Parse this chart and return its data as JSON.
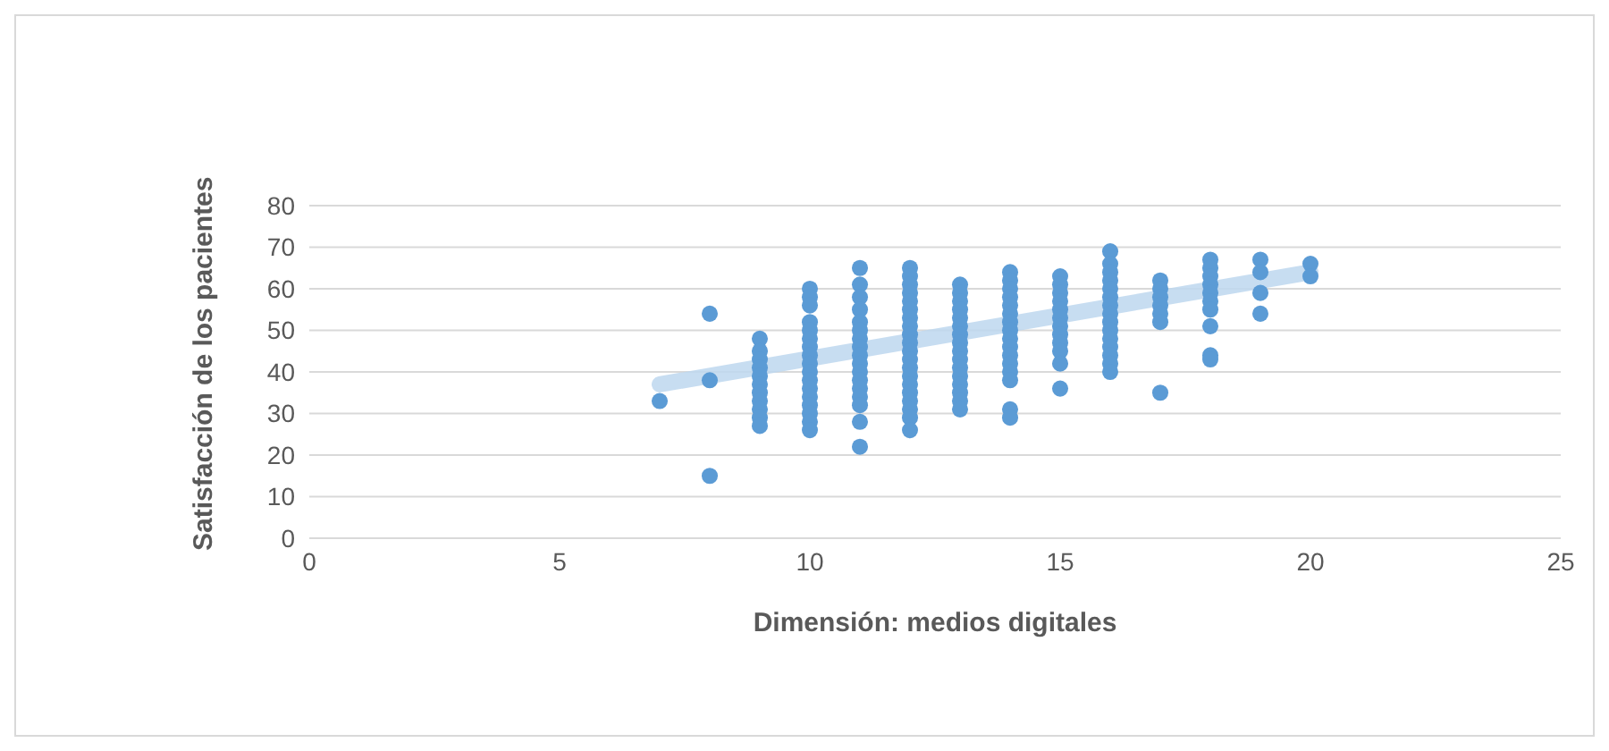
{
  "chart_data": {
    "type": "scatter",
    "xlabel": "Dimensión: medios digitales",
    "ylabel": "Satisfacción de los pacientes",
    "xlim": [
      0,
      25
    ],
    "xticks": [
      0,
      5,
      10,
      15,
      20,
      25
    ],
    "ylim": [
      0,
      80
    ],
    "yticks": [
      0,
      10,
      20,
      30,
      40,
      50,
      60,
      70,
      80
    ],
    "grid": "y",
    "legend": false,
    "marker": "circle",
    "series": [
      {
        "color": "#5b9bd5",
        "x": [
          7,
          8,
          8,
          8,
          9,
          9,
          9,
          9,
          9,
          9,
          9,
          9,
          9,
          9,
          9,
          10,
          10,
          10,
          10,
          10,
          10,
          10,
          10,
          10,
          10,
          10,
          10,
          10,
          10,
          10,
          10,
          10,
          11,
          11,
          11,
          11,
          11,
          11,
          11,
          11,
          11,
          11,
          11,
          11,
          11,
          11,
          11,
          11,
          11,
          12,
          12,
          12,
          12,
          12,
          12,
          12,
          12,
          12,
          12,
          12,
          12,
          12,
          12,
          12,
          12,
          12,
          12,
          12,
          12,
          13,
          13,
          13,
          13,
          13,
          13,
          13,
          13,
          13,
          13,
          13,
          13,
          13,
          13,
          13,
          13,
          14,
          14,
          14,
          14,
          14,
          14,
          14,
          14,
          14,
          14,
          14,
          14,
          14,
          14,
          14,
          14,
          15,
          15,
          15,
          15,
          15,
          15,
          15,
          15,
          15,
          15,
          15,
          15,
          16,
          16,
          16,
          16,
          16,
          16,
          16,
          16,
          16,
          16,
          16,
          16,
          16,
          16,
          16,
          17,
          17,
          17,
          17,
          17,
          17,
          17,
          18,
          18,
          18,
          18,
          18,
          18,
          18,
          18,
          18,
          18,
          19,
          19,
          19,
          19,
          20,
          20
        ],
        "values": [
          33,
          54,
          38,
          15,
          48,
          45,
          43,
          41,
          39,
          37,
          35,
          33,
          31,
          29,
          27,
          60,
          58,
          56,
          52,
          50,
          48,
          46,
          44,
          42,
          40,
          38,
          36,
          34,
          32,
          30,
          28,
          26,
          65,
          61,
          58,
          55,
          52,
          50,
          48,
          46,
          44,
          42,
          40,
          38,
          36,
          34,
          32,
          28,
          22,
          65,
          63,
          61,
          59,
          57,
          55,
          53,
          51,
          49,
          47,
          45,
          43,
          41,
          39,
          37,
          35,
          33,
          31,
          29,
          26,
          61,
          59,
          57,
          55,
          53,
          51,
          49,
          47,
          45,
          43,
          41,
          39,
          37,
          35,
          33,
          31,
          64,
          62,
          60,
          58,
          56,
          54,
          52,
          50,
          48,
          46,
          44,
          42,
          40,
          38,
          31,
          29,
          63,
          61,
          59,
          57,
          55,
          53,
          51,
          49,
          47,
          45,
          42,
          36,
          69,
          66,
          64,
          62,
          60,
          58,
          56,
          54,
          52,
          50,
          48,
          46,
          44,
          42,
          40,
          62,
          60,
          58,
          56,
          54,
          52,
          35,
          67,
          65,
          63,
          61,
          59,
          57,
          55,
          51,
          44,
          43,
          67,
          64,
          59,
          54,
          66,
          63
        ]
      },
      {
        "type": "line",
        "color": "#bdd7ee",
        "x": [
          7,
          20
        ],
        "values": [
          37,
          64
        ],
        "marker": "none"
      }
    ]
  }
}
